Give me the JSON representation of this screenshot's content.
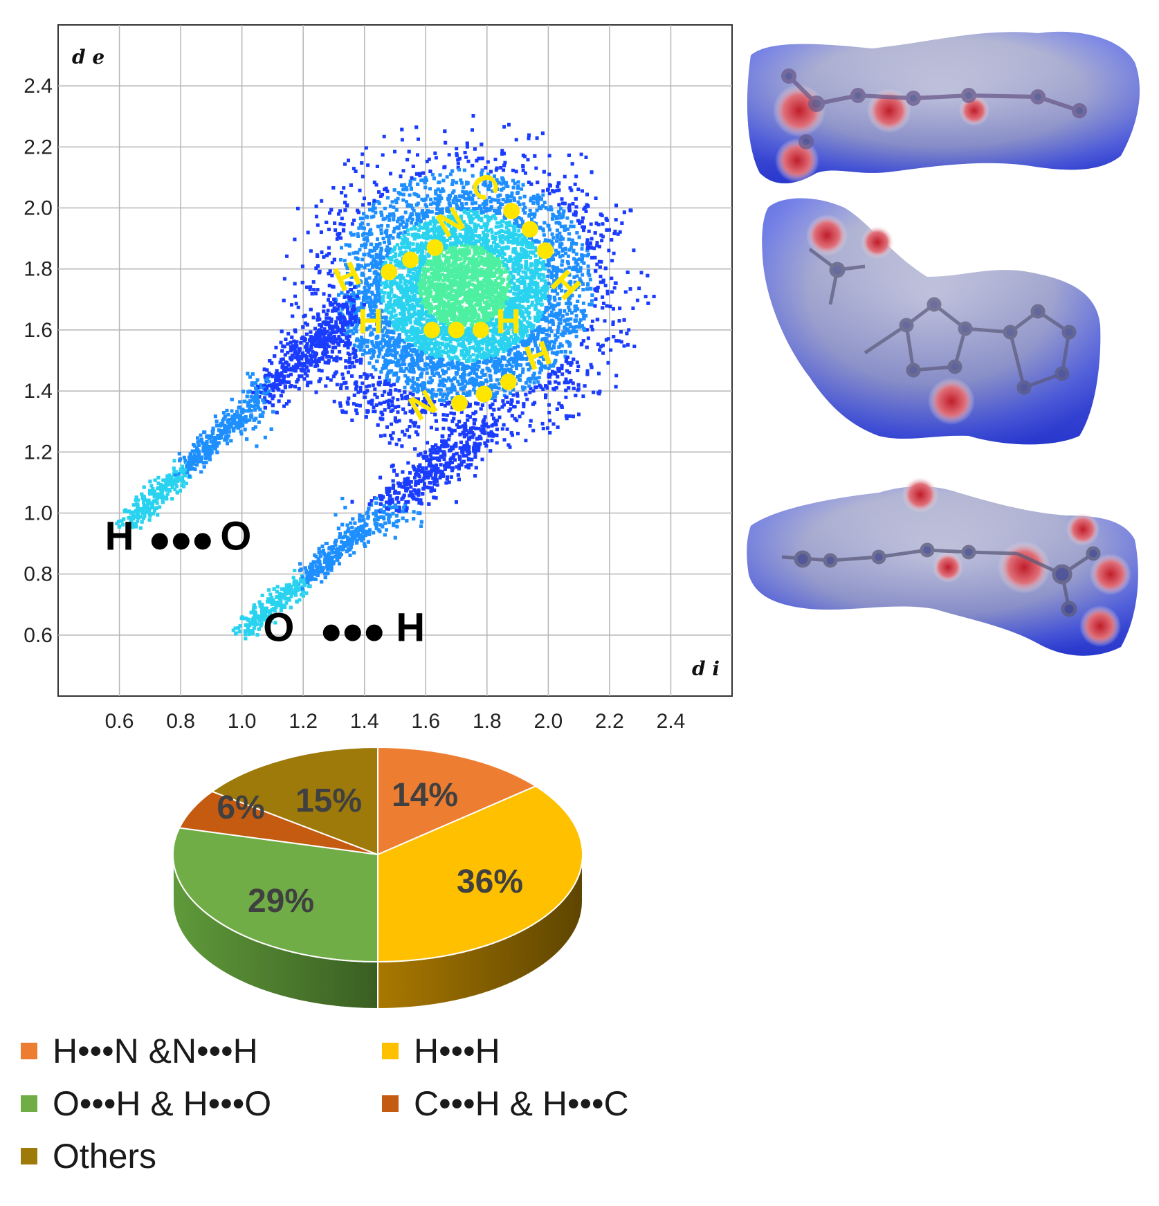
{
  "chart_data": [
    {
      "type": "scatter",
      "title": "",
      "xlabel": "d i",
      "ylabel": "d e",
      "xlim": [
        0.4,
        2.6
      ],
      "ylim": [
        0.4,
        2.6
      ],
      "x_ticks": [
        "0.6",
        "0.8",
        "1.0",
        "1.2",
        "1.4",
        "1.6",
        "1.8",
        "2.0",
        "2.2",
        "2.4"
      ],
      "y_ticks": [
        "0.6",
        "0.8",
        "1.0",
        "1.2",
        "1.4",
        "1.6",
        "1.8",
        "2.0",
        "2.2",
        "2.4"
      ],
      "grid": true,
      "colormap": [
        "#1a3cff",
        "#1e8fff",
        "#29d3f0",
        "#4cf0a0"
      ],
      "annotations": [
        {
          "text": "H",
          "x": 0.6,
          "y": 0.88,
          "color": "#000000"
        },
        {
          "text": "O",
          "x": 0.98,
          "y": 0.88,
          "color": "#000000"
        },
        {
          "text": "O",
          "x": 1.12,
          "y": 0.58,
          "color": "#000000"
        },
        {
          "text": "H",
          "x": 1.55,
          "y": 0.58,
          "color": "#000000"
        },
        {
          "text": "H",
          "x": 1.36,
          "y": 1.74,
          "color": "#ffe600"
        },
        {
          "text": "N",
          "x": 1.7,
          "y": 1.92,
          "color": "#ffe600"
        },
        {
          "text": "C",
          "x": 1.76,
          "y": 2.05,
          "color": "#ffe600"
        },
        {
          "text": "H",
          "x": 2.03,
          "y": 1.72,
          "color": "#ffe600"
        },
        {
          "text": "H",
          "x": 1.42,
          "y": 1.59,
          "color": "#ffe600"
        },
        {
          "text": "H",
          "x": 1.87,
          "y": 1.59,
          "color": "#ffe600"
        },
        {
          "text": "H",
          "x": 1.98,
          "y": 1.48,
          "color": "#ffe600"
        },
        {
          "text": "N",
          "x": 1.61,
          "y": 1.32,
          "color": "#ffe600"
        }
      ]
    },
    {
      "type": "pie",
      "title": "",
      "labels": [
        "H•••N &N•••H",
        "H•••H",
        "O•••H & H•••O",
        "C•••H & H•••C",
        "Others"
      ],
      "values": [
        14,
        36,
        29,
        6,
        15
      ],
      "value_labels": [
        "14%",
        "36%",
        "29%",
        "6%",
        "15%"
      ],
      "colors": [
        "#ed7d31",
        "#ffc000",
        "#70ad47",
        "#c55a11",
        "#9e7a0a"
      ],
      "legend_position": "bottom"
    }
  ],
  "legend": {
    "items": [
      {
        "label": "H•••N &N•••H",
        "color": "#ed7d31"
      },
      {
        "label": "H•••H",
        "color": "#ffc000"
      },
      {
        "label": "O•••H & H•••O",
        "color": "#70ad47"
      },
      {
        "label": "C•••H & H•••C",
        "color": "#c55a11"
      },
      {
        "label": "Others",
        "color": "#9e7a0a"
      }
    ]
  }
}
